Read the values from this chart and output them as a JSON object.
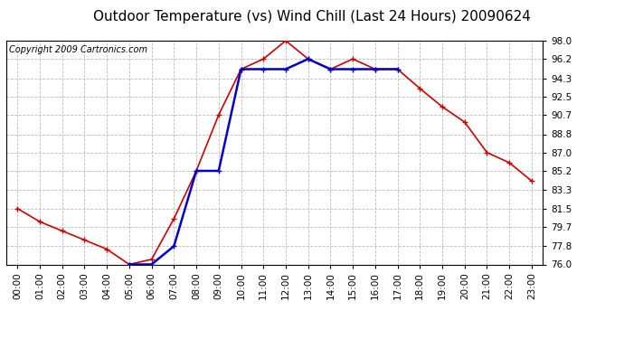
{
  "title": "Outdoor Temperature (vs) Wind Chill (Last 24 Hours) 20090624",
  "copyright": "Copyright 2009 Cartronics.com",
  "hours": [
    "00:00",
    "01:00",
    "02:00",
    "03:00",
    "04:00",
    "05:00",
    "06:00",
    "07:00",
    "08:00",
    "09:00",
    "10:00",
    "11:00",
    "12:00",
    "13:00",
    "14:00",
    "15:00",
    "16:00",
    "17:00",
    "18:00",
    "19:00",
    "20:00",
    "21:00",
    "22:00",
    "23:00"
  ],
  "temp": [
    81.5,
    80.2,
    79.3,
    78.4,
    77.5,
    76.0,
    76.5,
    80.5,
    85.2,
    90.7,
    95.2,
    96.2,
    98.0,
    96.2,
    95.2,
    96.2,
    95.2,
    95.2,
    93.3,
    91.5,
    90.0,
    87.0,
    86.0,
    84.2
  ],
  "windchill": [
    null,
    null,
    null,
    null,
    null,
    76.0,
    76.0,
    77.8,
    85.2,
    85.2,
    95.2,
    95.2,
    95.2,
    96.2,
    95.2,
    95.2,
    95.2,
    95.2,
    null,
    null,
    null,
    null,
    null,
    null
  ],
  "temp_color": "#cc0000",
  "wind_color": "#0000cc",
  "bg_color": "#ffffff",
  "plot_bg": "#ffffff",
  "grid_color": "#bbbbbb",
  "ymin": 76.0,
  "ymax": 98.0,
  "yticks": [
    76.0,
    77.8,
    79.7,
    81.5,
    83.3,
    85.2,
    87.0,
    88.8,
    90.7,
    92.5,
    94.3,
    96.2,
    98.0
  ],
  "title_fontsize": 11,
  "copyright_fontsize": 7,
  "tick_fontsize": 7.5
}
